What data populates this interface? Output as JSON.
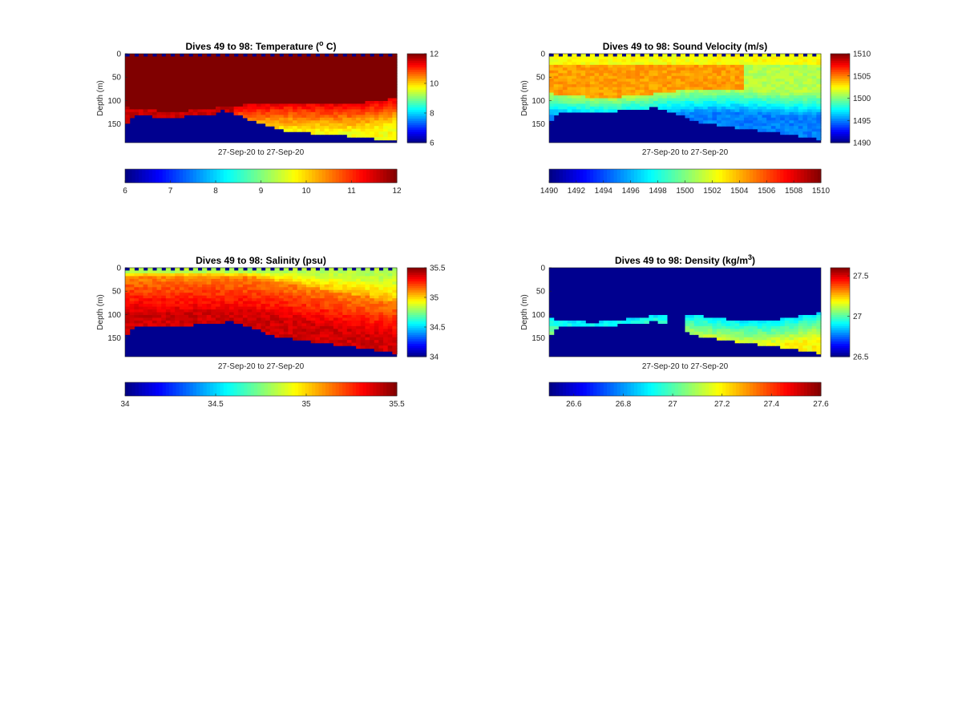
{
  "chart_data": [
    {
      "type": "heatmap",
      "title": "Dives 49 to 98: Temperature (",
      "title_sup": "o",
      "title_tail": " C)",
      "xlabel": "27-Sep-20 to 27-Sep-20",
      "ylabel": "Depth (m)",
      "ylim": [
        0,
        190
      ],
      "yticks": [
        "0",
        "50",
        "100",
        "150"
      ],
      "ytick_values": [
        0,
        50,
        100,
        150
      ],
      "clim": [
        6,
        12
      ],
      "vertical_colorbar_ticks": [
        "6",
        "8",
        "10",
        "12"
      ],
      "vertical_colorbar_values": [
        6,
        8,
        10,
        12
      ],
      "horizontal_colorbar_ticks": [
        "6",
        "7",
        "8",
        "9",
        "10",
        "11",
        "12"
      ],
      "horizontal_colorbar_values": [
        6,
        7,
        8,
        9,
        10,
        11,
        12
      ],
      "colormap": "jet",
      "field": "temperature"
    },
    {
      "type": "heatmap",
      "title": "Dives 49 to 98: Sound Velocity (m/s)",
      "title_sup": "",
      "title_tail": "",
      "xlabel": "27-Sep-20 to 27-Sep-20",
      "ylabel": "Depth (m)",
      "ylim": [
        0,
        190
      ],
      "yticks": [
        "0",
        "50",
        "100",
        "150"
      ],
      "ytick_values": [
        0,
        50,
        100,
        150
      ],
      "clim": [
        1490,
        1510
      ],
      "vertical_colorbar_ticks": [
        "1490",
        "1495",
        "1500",
        "1505",
        "1510"
      ],
      "vertical_colorbar_values": [
        1490,
        1495,
        1500,
        1505,
        1510
      ],
      "horizontal_colorbar_ticks": [
        "1490",
        "1492",
        "1494",
        "1496",
        "1498",
        "1500",
        "1502",
        "1504",
        "1506",
        "1508",
        "1510"
      ],
      "horizontal_colorbar_values": [
        1490,
        1492,
        1494,
        1496,
        1498,
        1500,
        1502,
        1504,
        1506,
        1508,
        1510
      ],
      "colormap": "jet",
      "field": "sound_velocity"
    },
    {
      "type": "heatmap",
      "title": "Dives 49 to 98: Salinity (psu)",
      "title_sup": "",
      "title_tail": "",
      "xlabel": "27-Sep-20 to 27-Sep-20",
      "ylabel": "Depth (m)",
      "ylim": [
        0,
        190
      ],
      "yticks": [
        "0",
        "50",
        "100",
        "150"
      ],
      "ytick_values": [
        0,
        50,
        100,
        150
      ],
      "clim": [
        34,
        35.5
      ],
      "vertical_colorbar_ticks": [
        "34",
        "34.5",
        "35",
        "35.5"
      ],
      "vertical_colorbar_values": [
        34,
        34.5,
        35,
        35.5
      ],
      "horizontal_colorbar_ticks": [
        "34",
        "34.5",
        "35",
        "35.5"
      ],
      "horizontal_colorbar_values": [
        34,
        34.5,
        35,
        35.5
      ],
      "colormap": "jet",
      "field": "salinity"
    },
    {
      "type": "heatmap",
      "title": "Dives 49 to 98: Density (kg/m",
      "title_sup": "3",
      "title_tail": ")",
      "xlabel": "27-Sep-20 to 27-Sep-20",
      "ylabel": "Depth (m)",
      "ylim": [
        0,
        190
      ],
      "yticks": [
        "0",
        "50",
        "100",
        "150"
      ],
      "ytick_values": [
        0,
        50,
        100,
        150
      ],
      "clim": [
        26.5,
        27.6
      ],
      "vertical_colorbar_ticks": [
        "26.5",
        "27",
        "27.5"
      ],
      "vertical_colorbar_values": [
        26.5,
        27,
        27.5
      ],
      "horizontal_colorbar_ticks": [
        "26.6",
        "26.8",
        "27",
        "27.2",
        "27.4",
        "27.6"
      ],
      "horizontal_colorbar_values": [
        26.6,
        26.8,
        27,
        27.2,
        27.4,
        27.6
      ],
      "colormap": "jet",
      "field": "density"
    }
  ]
}
